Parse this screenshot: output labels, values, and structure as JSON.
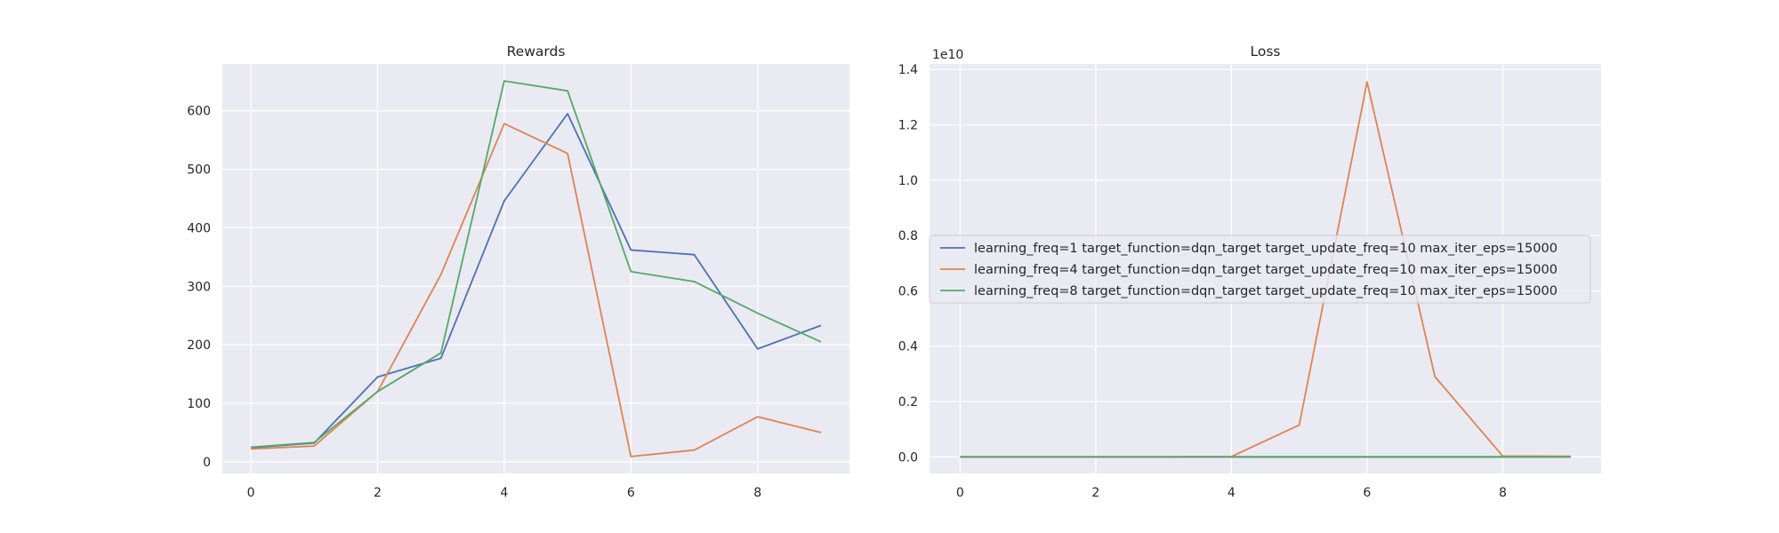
{
  "chart_data": [
    {
      "type": "line",
      "title": "Rewards",
      "xlabel": "",
      "ylabel": "",
      "x": [
        0,
        1,
        2,
        3,
        4,
        5,
        6,
        7,
        8,
        9
      ],
      "xlim": [
        -0.45,
        9.45
      ],
      "ylim": [
        -20,
        680
      ],
      "xticks": [
        0,
        2,
        4,
        6,
        8
      ],
      "yticks": [
        0,
        100,
        200,
        300,
        400,
        500,
        600
      ],
      "x_tick_labels": [
        "0",
        "2",
        "4",
        "6",
        "8"
      ],
      "y_tick_labels": [
        "0",
        "100",
        "200",
        "300",
        "400",
        "500",
        "600"
      ],
      "grid": true,
      "series": [
        {
          "name": "learning_freq=1 target_function=dqn_target target_update_freq=10 max_iter_eps=15000",
          "color": "#4c72b0",
          "values": [
            24,
            32,
            145,
            177,
            446,
            595,
            362,
            354,
            193,
            233
          ]
        },
        {
          "name": "learning_freq=4 target_function=dqn_target target_update_freq=10 max_iter_eps=15000",
          "color": "#dd8452",
          "values": [
            22,
            27,
            120,
            320,
            578,
            527,
            9,
            20,
            77,
            50
          ]
        },
        {
          "name": "learning_freq=8 target_function=dqn_target target_update_freq=10 max_iter_eps=15000",
          "color": "#55a868",
          "values": [
            25,
            33,
            120,
            186,
            651,
            634,
            325,
            308,
            254,
            205
          ]
        }
      ]
    },
    {
      "type": "line",
      "title": "Loss",
      "xlabel": "",
      "ylabel": "",
      "offset_label": "1e10",
      "x": [
        0,
        1,
        2,
        3,
        4,
        5,
        6,
        7,
        8,
        9
      ],
      "xlim": [
        -0.45,
        9.45
      ],
      "ylim": [
        -0.06,
        1.42
      ],
      "xticks": [
        0,
        2,
        4,
        6,
        8
      ],
      "yticks": [
        0.0,
        0.2,
        0.4,
        0.6,
        0.8,
        1.0,
        1.2,
        1.4
      ],
      "x_tick_labels": [
        "0",
        "2",
        "4",
        "6",
        "8"
      ],
      "y_tick_labels": [
        "0.0",
        "0.2",
        "0.4",
        "0.6",
        "0.8",
        "1.0",
        "1.2",
        "1.4"
      ],
      "grid": true,
      "legend": {
        "placement": "center-right"
      },
      "series": [
        {
          "name": "learning_freq=1 target_function=dqn_target target_update_freq=10 max_iter_eps=15000",
          "color": "#4c72b0",
          "values": [
            0,
            0,
            0,
            0,
            0,
            0,
            0,
            0,
            0,
            0
          ]
        },
        {
          "name": "learning_freq=4 target_function=dqn_target target_update_freq=10 max_iter_eps=15000",
          "color": "#dd8452",
          "values": [
            0,
            0,
            0,
            0,
            0.001,
            0.115,
            1.355,
            0.29,
            0.003,
            0.002
          ]
        },
        {
          "name": "learning_freq=8 target_function=dqn_target target_update_freq=10 max_iter_eps=15000",
          "color": "#55a868",
          "values": [
            0,
            0,
            0,
            0,
            0,
            0,
            0,
            0,
            0,
            0
          ]
        }
      ]
    }
  ]
}
